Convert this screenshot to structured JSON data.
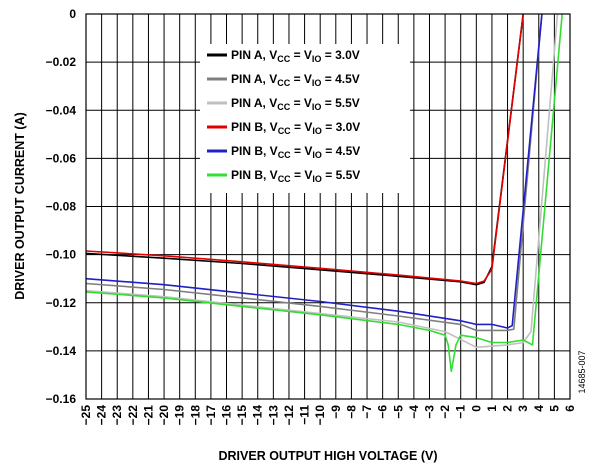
{
  "chart_data": {
    "type": "line",
    "xlabel": "DRIVER OUTPUT HIGH VOLTAGE (V)",
    "ylabel": "DRIVER OUTPUT CURRENT (A)",
    "xlim": [
      -25,
      6
    ],
    "ylim": [
      -0.16,
      0
    ],
    "x_ticks": [
      -25,
      -24,
      -23,
      -22,
      -21,
      -20,
      -19,
      -18,
      -17,
      -16,
      -15,
      -14,
      -13,
      -12,
      -11,
      -10,
      -9,
      -8,
      -7,
      -6,
      -5,
      -4,
      -3,
      -2,
      -1,
      0,
      1,
      2,
      3,
      4,
      5,
      6
    ],
    "x_tick_labels": [
      "−25",
      "−24",
      "−23",
      "−22",
      "−21",
      "−20",
      "−19",
      "−18",
      "−17",
      "−16",
      "−15",
      "−14",
      "−13",
      "−12",
      "−11",
      "−10",
      "−9",
      "−8",
      "−7",
      "−6",
      "−5",
      "−4",
      "−3",
      "−2",
      "−1",
      "0",
      "1",
      "2",
      "3",
      "4",
      "5",
      "6"
    ],
    "y_ticks": [
      0,
      -0.02,
      -0.04,
      -0.06,
      -0.08,
      -0.1,
      -0.12,
      -0.14,
      -0.16
    ],
    "y_tick_labels": [
      "0",
      "−0.02",
      "−0.04",
      "−0.06",
      "−0.08",
      "−0.10",
      "−0.12",
      "−0.14",
      "−0.16"
    ],
    "grid": true,
    "legend_position": "top-right",
    "series": [
      {
        "label_main": "PIN A, V",
        "sub1": "CC",
        "label_mid": " = V",
        "sub2": "IO",
        "label_end": " = 3.0V",
        "color": "#000000",
        "points": [
          [
            -25,
            -0.0995
          ],
          [
            -20,
            -0.1015
          ],
          [
            -15,
            -0.1037
          ],
          [
            -10,
            -0.1063
          ],
          [
            -5,
            -0.109
          ],
          [
            -1,
            -0.1113
          ],
          [
            0,
            -0.1125
          ],
          [
            0.5,
            -0.1115
          ],
          [
            1,
            -0.105
          ],
          [
            3,
            0
          ]
        ]
      },
      {
        "label_main": "PIN A, V",
        "sub1": "CC",
        "label_mid": " = V",
        "sub2": "IO",
        "label_end": " = 4.5V",
        "color": "#7f7f7f",
        "points": [
          [
            -25,
            -0.112
          ],
          [
            -20,
            -0.1145
          ],
          [
            -15,
            -0.118
          ],
          [
            -10,
            -0.1215
          ],
          [
            -5,
            -0.1255
          ],
          [
            -1,
            -0.129
          ],
          [
            0,
            -0.1315
          ],
          [
            1,
            -0.1315
          ],
          [
            2,
            -0.1315
          ],
          [
            2.4,
            -0.131
          ],
          [
            4.2,
            0
          ]
        ]
      },
      {
        "label_main": "PIN A, V",
        "sub1": "CC",
        "label_mid": " = V",
        "sub2": "IO",
        "label_end": " = 5.5V",
        "color": "#c0c0c0",
        "points": [
          [
            -25,
            -0.115
          ],
          [
            -20,
            -0.1175
          ],
          [
            -15,
            -0.121
          ],
          [
            -10,
            -0.1245
          ],
          [
            -5,
            -0.128
          ],
          [
            -2,
            -0.132
          ],
          [
            0,
            -0.1385
          ],
          [
            1,
            -0.138
          ],
          [
            2,
            -0.1375
          ],
          [
            3,
            -0.1365
          ],
          [
            3.5,
            -0.132
          ],
          [
            5.2,
            0
          ]
        ]
      },
      {
        "label_main": "PIN B, V",
        "sub1": "CC",
        "label_mid": " = V",
        "sub2": "IO",
        "label_end": " = 3.0V",
        "color": "#e00000",
        "points": [
          [
            -25,
            -0.0985
          ],
          [
            -20,
            -0.1005
          ],
          [
            -15,
            -0.103
          ],
          [
            -10,
            -0.1057
          ],
          [
            -5,
            -0.1085
          ],
          [
            -1,
            -0.111
          ],
          [
            0,
            -0.112
          ],
          [
            0.5,
            -0.111
          ],
          [
            1,
            -0.106
          ],
          [
            3,
            0
          ]
        ]
      },
      {
        "label_main": "PIN B, V",
        "sub1": "CC",
        "label_mid": " = V",
        "sub2": "IO",
        "label_end": " = 4.5V",
        "color": "#2020c8",
        "points": [
          [
            -25,
            -0.11
          ],
          [
            -20,
            -0.1125
          ],
          [
            -15,
            -0.116
          ],
          [
            -10,
            -0.1195
          ],
          [
            -5,
            -0.1235
          ],
          [
            -1,
            -0.1275
          ],
          [
            0,
            -0.129
          ],
          [
            1,
            -0.129
          ],
          [
            2,
            -0.1305
          ],
          [
            2.3,
            -0.1295
          ],
          [
            4.2,
            0
          ]
        ]
      },
      {
        "label_main": "PIN B, V",
        "sub1": "CC",
        "label_mid": " = V",
        "sub2": "IO",
        "label_end": " = 5.5V",
        "color": "#33dd33",
        "points": [
          [
            -25,
            -0.1155
          ],
          [
            -20,
            -0.118
          ],
          [
            -15,
            -0.1215
          ],
          [
            -10,
            -0.125
          ],
          [
            -5,
            -0.129
          ],
          [
            -3,
            -0.1315
          ],
          [
            -2,
            -0.1335
          ],
          [
            -1.8,
            -0.1375
          ],
          [
            -1.6,
            -0.1485
          ],
          [
            -1.3,
            -0.1375
          ],
          [
            -1,
            -0.1335
          ],
          [
            0,
            -0.1345
          ],
          [
            1,
            -0.1365
          ],
          [
            2,
            -0.1365
          ],
          [
            3,
            -0.1355
          ],
          [
            3.6,
            -0.1375
          ],
          [
            5.5,
            0
          ]
        ]
      }
    ]
  },
  "figure_code": "14685-007"
}
